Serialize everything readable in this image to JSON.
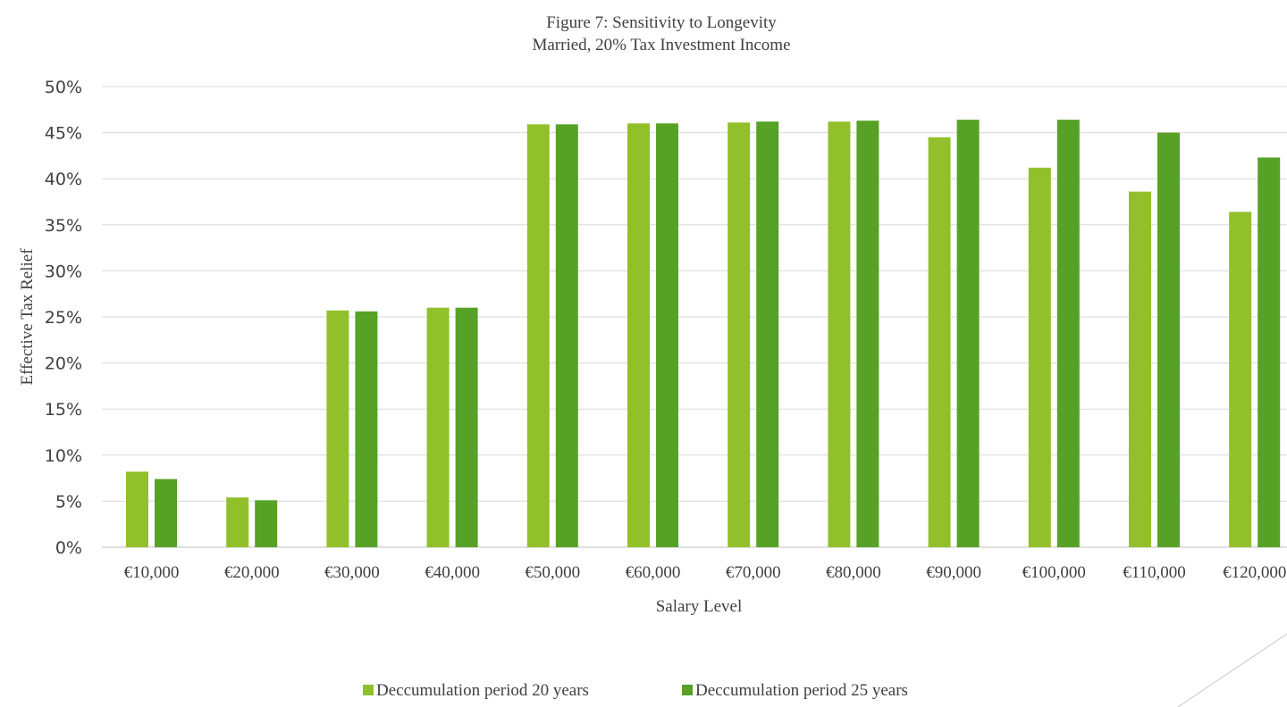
{
  "chart_data": {
    "type": "bar",
    "title": "Figure 7: Sensitivity to Longevity",
    "subtitle": "Married, 20% Tax Investment Income",
    "xlabel": "Salary Level",
    "ylabel": "Effective Tax Relief",
    "ylim": [
      0,
      50
    ],
    "yticks": [
      "0%",
      "5%",
      "10%",
      "15%",
      "20%",
      "25%",
      "30%",
      "35%",
      "40%",
      "45%",
      "50%"
    ],
    "grid": true,
    "legend_position": "bottom",
    "categories": [
      "€10,000",
      "€20,000",
      "€30,000",
      "€40,000",
      "€50,000",
      "€60,000",
      "€70,000",
      "€80,000",
      "€90,000",
      "€100,000",
      "€110,000",
      "€120,000"
    ],
    "series": [
      {
        "name": "Deccumulation period 20 years",
        "color": "#92c02b",
        "values": [
          8.2,
          5.4,
          25.7,
          26.0,
          45.9,
          46.0,
          46.1,
          46.2,
          44.5,
          41.2,
          38.6,
          36.4
        ]
      },
      {
        "name": "Deccumulation period 25 years",
        "color": "#56a126",
        "values": [
          7.4,
          5.1,
          25.6,
          26.0,
          45.9,
          46.0,
          46.2,
          46.3,
          46.4,
          46.4,
          45.0,
          42.3
        ]
      }
    ]
  }
}
